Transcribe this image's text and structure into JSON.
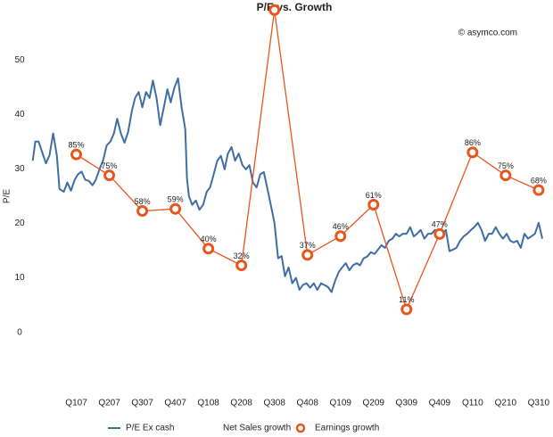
{
  "chart_data": {
    "type": "line",
    "title": "P/E vs. Growth",
    "annotation": "© asymco.com",
    "y_label": "P/E",
    "categories": [
      "Q107",
      "Q207",
      "Q307",
      "Q407",
      "Q108",
      "Q208",
      "Q308",
      "Q408",
      "Q109",
      "Q209",
      "Q309",
      "Q409",
      "Q110",
      "Q210",
      "Q310"
    ],
    "xlim": [
      -1.5,
      14.3
    ],
    "ylim": [
      -12,
      60
    ],
    "yticks": [
      0,
      10,
      20,
      30,
      40,
      50
    ],
    "y2lim": [
      -31.25,
      156.25
    ],
    "grid": false,
    "legend": "bottom",
    "series": [
      {
        "name": "P/E Ex cash",
        "color": "#3f6ea5",
        "x": [
          -1.32,
          -1.24,
          -1.14,
          -1.03,
          -0.92,
          -0.81,
          -0.7,
          -0.59,
          -0.51,
          -0.38,
          -0.27,
          -0.16,
          -0.05,
          0.05,
          0.16,
          0.27,
          0.38,
          0.49,
          0.59,
          0.7,
          0.81,
          0.92,
          1.03,
          1.14,
          1.24,
          1.35,
          1.46,
          1.57,
          1.68,
          1.78,
          1.89,
          2.0,
          2.11,
          2.22,
          2.32,
          2.43,
          2.54,
          2.65,
          2.76,
          2.86,
          2.97,
          3.08,
          3.19,
          3.3,
          3.35,
          3.41,
          3.51,
          3.62,
          3.73,
          3.84,
          3.95,
          4.05,
          4.16,
          4.27,
          4.38,
          4.49,
          4.59,
          4.7,
          4.81,
          4.92,
          5.03,
          5.14,
          5.24,
          5.35,
          5.46,
          5.57,
          5.68,
          5.78,
          5.89,
          6.0,
          6.11,
          6.22,
          6.32,
          6.43,
          6.54,
          6.65,
          6.76,
          6.86,
          6.97,
          7.08,
          7.19,
          7.3,
          7.41,
          7.51,
          7.62,
          7.73,
          7.84,
          7.95,
          8.05,
          8.16,
          8.27,
          8.38,
          8.49,
          8.59,
          8.7,
          8.81,
          8.92,
          9.03,
          9.14,
          9.24,
          9.35,
          9.46,
          9.57,
          9.68,
          9.78,
          9.89,
          10.0,
          10.11,
          10.22,
          10.32,
          10.43,
          10.54,
          10.65,
          10.76,
          10.86,
          10.97,
          11.08,
          11.19,
          11.3,
          11.41,
          11.51,
          11.62,
          11.73,
          11.84,
          11.95,
          12.05,
          12.16,
          12.27,
          12.38,
          12.49,
          12.59,
          12.7,
          12.81,
          12.92,
          13.03,
          13.14,
          13.24,
          13.35,
          13.46,
          13.57,
          13.68,
          13.78,
          13.89,
          14.0,
          14.11
        ],
        "values": [
          31.5,
          35,
          35,
          33,
          31,
          32.5,
          36.5,
          32.5,
          26.3,
          25.8,
          27.5,
          26,
          28,
          29,
          29.5,
          28,
          27.8,
          27,
          28,
          29.9,
          31.5,
          34.3,
          35,
          36.5,
          39.2,
          36.5,
          34.8,
          36.8,
          40.5,
          43,
          44.1,
          41.3,
          44.1,
          43,
          46.2,
          43,
          38,
          41.3,
          44.6,
          42.2,
          44.9,
          46.6,
          41.3,
          37.3,
          28.3,
          25,
          23.4,
          24.2,
          22.5,
          23.4,
          25.8,
          26.6,
          29,
          31.5,
          32.4,
          29.9,
          32.8,
          34,
          31.5,
          32.8,
          30.7,
          29.9,
          30.7,
          27.5,
          26.6,
          29,
          29.4,
          26.6,
          23.4,
          20.1,
          13.6,
          14,
          10.3,
          11.9,
          9,
          10,
          7.8,
          8.7,
          9,
          8.2,
          9,
          7.8,
          9,
          8.7,
          8.3,
          7.4,
          9.5,
          11.1,
          11.9,
          12.7,
          11.4,
          12.3,
          12.7,
          12.3,
          13.6,
          13.9,
          14.7,
          14.4,
          15.2,
          16,
          15.5,
          16.8,
          17.2,
          18.1,
          17.6,
          18.1,
          18.1,
          19.3,
          17.6,
          18.1,
          18.8,
          17.2,
          18.1,
          18.1,
          18.8,
          17.6,
          18.1,
          18.8,
          14.9,
          15.2,
          15.5,
          16.8,
          17.6,
          18.1,
          18.8,
          19.3,
          20.1,
          18.8,
          16.8,
          18.1,
          18.1,
          19.3,
          18.1,
          17.2,
          18.1,
          16.8,
          16.5,
          16.8,
          15.5,
          18.1,
          17.2,
          17.6,
          18.1,
          20.1,
          17.2
        ]
      },
      {
        "name": "Net Sales growth",
        "values": [
          null,
          null,
          null,
          null,
          null,
          null,
          null,
          null,
          null,
          null,
          null,
          null,
          null,
          null,
          null
        ]
      },
      {
        "name": "Earnings growth",
        "color": "#e8561c",
        "axis": "y2",
        "marker": "circle",
        "values": [
          85,
          75,
          58,
          59,
          40,
          32,
          154,
          37,
          46,
          61,
          11,
          47,
          86,
          75,
          68
        ],
        "value_labels": [
          "85%",
          "75%",
          "58%",
          "59%",
          "40%",
          "32%",
          null,
          "37%",
          "46%",
          "61%",
          "11%",
          "47%",
          "86%",
          "75%",
          "68%"
        ]
      }
    ]
  }
}
